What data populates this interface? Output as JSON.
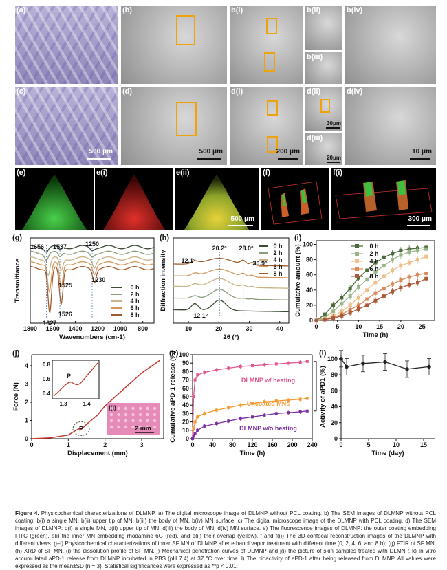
{
  "panels_top": {
    "a": "(a)",
    "b": "(b)",
    "bi": "b(i)",
    "bii": "b(ii)",
    "biii": "b(iii)",
    "biv": "b(iv)",
    "c": "(c)",
    "d": "(d)",
    "di": "d(i)",
    "dii": "d(ii)",
    "diii": "d(iii)",
    "div": "d(iv)",
    "e": "(e)",
    "ei": "e(i)",
    "eii": "e(ii)",
    "f": "(f)",
    "fi": "f(i)",
    "g": "(g)",
    "h": "(h)",
    "i": "(i)",
    "j": "(j)",
    "ji": "j(i)",
    "k": "(k)",
    "l": "(l)"
  },
  "scalebars": {
    "c": "500 μm",
    "d": "500 μm",
    "di": "200 μm",
    "dii": "30μm",
    "diii": "20μm",
    "div": "10 μm",
    "eii": "500 μm",
    "fi": "300 μm",
    "ji": "2 mm"
  },
  "chart_data": [
    {
      "panel": "g",
      "type": "line",
      "ylabel": "Transmittance",
      "xlabel": "Wavenumbers (cm-1)",
      "x_ticks": [
        "1800",
        "1600",
        "1400",
        "1200",
        "1000",
        "800"
      ],
      "xlim": [
        1800,
        700
      ],
      "x_reversed": true,
      "legend": [
        "0 h",
        "2 h",
        "4 h",
        "6 h",
        "8 h"
      ],
      "annotations": [
        "1656",
        "1537",
        "1250",
        "1525",
        "1230",
        "1526",
        "1627"
      ],
      "series": [
        {
          "name": "0 h",
          "color": "#3a4a33",
          "offset": 0.92,
          "peaks": [
            [
              1656,
              0.05
            ],
            [
              1537,
              0.04
            ],
            [
              1250,
              0.03
            ]
          ]
        },
        {
          "name": "2 h",
          "color": "#8a9e7a",
          "offset": 0.85,
          "peaks": [
            [
              1656,
              0.08
            ],
            [
              1537,
              0.06
            ],
            [
              1250,
              0.04
            ]
          ]
        },
        {
          "name": "4 h",
          "color": "#c9b48a",
          "offset": 0.78,
          "peaks": [
            [
              1640,
              0.2
            ],
            [
              1525,
              0.15
            ],
            [
              1230,
              0.1
            ]
          ]
        },
        {
          "name": "6 h",
          "color": "#d4955a",
          "offset": 0.72,
          "peaks": [
            [
              1630,
              0.35
            ],
            [
              1526,
              0.3
            ],
            [
              1230,
              0.12
            ]
          ]
        },
        {
          "name": "8 h",
          "color": "#a05a2c",
          "offset": 0.66,
          "peaks": [
            [
              1627,
              0.55
            ],
            [
              1526,
              0.45
            ],
            [
              1230,
              0.16
            ]
          ]
        }
      ]
    },
    {
      "panel": "h",
      "type": "line",
      "ylabel": "Diffraction intensity",
      "xlabel": "2θ (°)",
      "x_ticks": [
        "10",
        "20",
        "30",
        "40"
      ],
      "xlim": [
        5,
        43
      ],
      "legend": [
        "0 h",
        "2 h",
        "4 h",
        "6 h",
        "8 h"
      ],
      "annotations": [
        "12.1°",
        "20.2°",
        "28.0°",
        "30.9°",
        "12.1°"
      ],
      "series": [
        {
          "name": "0 h",
          "color": "#3a4a33"
        },
        {
          "name": "2 h",
          "color": "#8a9e7a"
        },
        {
          "name": "4 h",
          "color": "#c9b48a"
        },
        {
          "name": "6 h",
          "color": "#d4955a"
        },
        {
          "name": "8 h",
          "color": "#a05a2c"
        }
      ]
    },
    {
      "panel": "i",
      "type": "line",
      "ylabel": "Cumulative amount (%)",
      "xlabel": "Time (h)",
      "x_ticks": [
        "0",
        "5",
        "10",
        "15",
        "20",
        "25"
      ],
      "y_ticks": [
        "0",
        "20",
        "40",
        "60",
        "80",
        "100"
      ],
      "xlim": [
        0,
        28
      ],
      "ylim": [
        0,
        105
      ],
      "x": [
        0,
        2,
        4,
        6,
        8,
        10,
        12,
        14,
        16,
        18,
        20,
        22,
        24,
        26
      ],
      "series": [
        {
          "name": "0 h",
          "color": "#4a6a3a",
          "values": [
            0,
            8,
            20,
            30,
            42,
            56,
            66,
            76,
            83,
            88,
            92,
            94,
            95,
            96
          ]
        },
        {
          "name": "2 h",
          "color": "#9ab58a",
          "values": [
            0,
            4,
            12,
            22,
            32,
            44,
            54,
            64,
            72,
            80,
            86,
            90,
            92,
            94
          ]
        },
        {
          "name": "4 h",
          "color": "#efc08a",
          "values": [
            0,
            2,
            6,
            12,
            20,
            30,
            40,
            50,
            58,
            66,
            72,
            76,
            80,
            84
          ]
        },
        {
          "name": "6 h",
          "color": "#d88a5a",
          "values": [
            0,
            1,
            4,
            8,
            14,
            20,
            28,
            36,
            42,
            48,
            53,
            57,
            60,
            62
          ]
        },
        {
          "name": "8 h",
          "color": "#a85a3a",
          "values": [
            0,
            1,
            3,
            6,
            10,
            15,
            20,
            26,
            32,
            38,
            43,
            47,
            50,
            55
          ]
        }
      ]
    },
    {
      "panel": "j",
      "type": "line",
      "ylabel": "Force (N)",
      "xlabel": "Displacement (mm)",
      "x_ticks": [
        "0",
        "1",
        "2",
        "3"
      ],
      "y_ticks": [
        "0",
        "1",
        "2",
        "3",
        "4"
      ],
      "xlim": [
        0,
        3.6
      ],
      "ylim": [
        0,
        4.6
      ],
      "x": [
        0,
        0.5,
        1.0,
        1.2,
        1.3,
        1.35,
        1.4,
        1.5,
        1.8,
        2.0,
        2.5,
        3.0,
        3.5
      ],
      "values": [
        0,
        0.05,
        0.2,
        0.45,
        0.55,
        0.5,
        0.6,
        0.8,
        1.3,
        1.8,
        2.7,
        3.6,
        4.3
      ],
      "annotations": [
        "P",
        "P"
      ],
      "inset": {
        "x_ticks": [
          "1.3",
          "1.4"
        ],
        "y_ticks": [
          "0.4",
          "0.6",
          "0.8"
        ]
      }
    },
    {
      "panel": "k",
      "type": "line",
      "ylabel": "Cumulative aPD-1 release (%)",
      "xlabel": "Time (h)",
      "x_ticks": [
        "0",
        "40",
        "80",
        "120",
        "160",
        "200",
        "240"
      ],
      "y_ticks": [
        "0",
        "10",
        "20",
        "30",
        "40",
        "50",
        "60",
        "70",
        "80",
        "90",
        "100"
      ],
      "xlim": [
        0,
        240
      ],
      "ylim": [
        0,
        100
      ],
      "annotation": "**",
      "series": [
        {
          "name": "DLMNP w/ heating",
          "color": "#e0568e",
          "x": [
            0,
            2,
            5,
            10,
            24,
            48,
            72,
            96,
            120,
            144,
            168,
            192,
            216,
            230
          ],
          "values": [
            0,
            50,
            70,
            76,
            79,
            82,
            84,
            86,
            87,
            88,
            89,
            90,
            91,
            92
          ]
        },
        {
          "name": "Uncoated MNs",
          "color": "#f39a33",
          "x": [
            0,
            2,
            5,
            10,
            24,
            48,
            72,
            96,
            120,
            144,
            168,
            192,
            216,
            230
          ],
          "values": [
            0,
            12,
            20,
            26,
            30,
            34,
            37,
            40,
            42,
            44,
            45,
            46,
            47,
            48
          ]
        },
        {
          "name": "DLMNP w/o heating",
          "color": "#7a2fa0",
          "x": [
            0,
            2,
            5,
            10,
            24,
            48,
            72,
            96,
            120,
            144,
            168,
            192,
            216,
            230
          ],
          "values": [
            0,
            3,
            6,
            10,
            15,
            18,
            21,
            24,
            26,
            28,
            30,
            31,
            32,
            33
          ]
        }
      ]
    },
    {
      "panel": "l",
      "type": "line",
      "ylabel": "Activity of aPD1 (%)",
      "xlabel": "Time (day)",
      "x_ticks": [
        "0",
        "5",
        "10",
        "15"
      ],
      "y_ticks": [
        "0",
        "20",
        "40",
        "60",
        "80",
        "100"
      ],
      "xlim": [
        0,
        17
      ],
      "ylim": [
        0,
        105
      ],
      "x": [
        0,
        1,
        4,
        8,
        12,
        16
      ],
      "values": [
        100,
        90,
        94,
        96,
        87,
        90
      ]
    }
  ],
  "caption": {
    "figure_label": "Figure 4.",
    "text": "Physicochemical characterizations of DLMNP. a) The digital microscope image of DLMNP without PCL coating. b) The SEM images of DLMNP without PCL coating: b(i) a single MN, b(ii) upper tip of MN, b(iii) the body of MN, b(iv) MN surface. c) The digital microscope image of the DLMNP with PCL coating. d) The SEM images of DLMNP: d(i) a single MN, d(ii) upper tip of MN, d(iii) the body of MN, d(iv) MN surface. e) The fluorescence images of DLMNP: the outer coating embedding FITC (green), e(i) the inner MN embedding rhodamine 6G (red), and e(ii) their overlap (yellow). f and f(i)) The 3D confocal reconstruction images of the DLMNP with different views. g–i) Physicochemical characterizations of inner SF MN of DLMNP after ethanol vapor treatment with different time (0, 2, 4, 6, and 8 h); (g) FTIR of SF MN, (h) XRD of SF MN, (i) the dissolution profile of SF MN. j) Mechanical penetration curves of DLMNP and j(i) the picture of skin samples treated with DLMNP. k) In vitro accumulated aPD-1 release from DLMNP incubated in PBS (pH 7.4) at 37 °C over time. l) The bioactivity of aPD-1 after being released from DLMNP. All values were expressed as the mean±SD (n = 3). Statistical significances were expressed as **p < 0.01."
  }
}
